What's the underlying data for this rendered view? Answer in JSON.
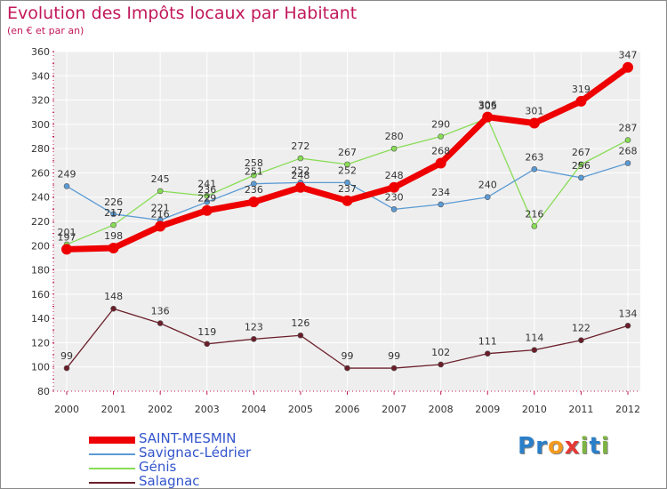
{
  "header": {
    "title": "Evolution des Impôts locaux par Habitant",
    "subtitle": "(en € et par an)"
  },
  "brand": {
    "text": "Proxiti",
    "letters": [
      {
        "ch": "P",
        "color": "#2a7fc9"
      },
      {
        "ch": "r",
        "color": "#2a7fc9"
      },
      {
        "ch": "o",
        "color": "#f39a1e"
      },
      {
        "ch": "x",
        "color": "#e53935"
      },
      {
        "ch": "i",
        "color": "#7cb342"
      },
      {
        "ch": "t",
        "color": "#2a7fc9"
      },
      {
        "ch": "i",
        "color": "#7cb342"
      }
    ]
  },
  "chart_data": {
    "type": "line",
    "title": "Evolution des Impôts locaux par Habitant",
    "subtitle": "(en € et par an)",
    "x": [
      "2000",
      "2001",
      "2002",
      "2003",
      "2004",
      "2005",
      "2006",
      "2007",
      "2008",
      "2009",
      "2010",
      "2011",
      "2012"
    ],
    "ylim": [
      80,
      360
    ],
    "yticks": [
      80,
      100,
      120,
      140,
      160,
      180,
      200,
      220,
      240,
      260,
      280,
      300,
      320,
      340,
      360
    ],
    "grid": true,
    "legend_position": "bottom-left",
    "series": [
      {
        "name": "SAINT-MESMIN",
        "color": "#ee0000",
        "values": [
          197,
          198,
          216,
          229,
          236,
          248,
          237,
          248,
          268,
          306,
          301,
          319,
          347
        ]
      },
      {
        "name": "Savignac-Lédrier",
        "color": "#5b9bd5",
        "values": [
          249,
          226,
          221,
          236,
          251,
          252,
          252,
          230,
          234,
          240,
          263,
          256,
          268
        ]
      },
      {
        "name": "Génis",
        "color": "#88dd55",
        "values": [
          201,
          217,
          245,
          241,
          258,
          272,
          267,
          280,
          290,
          305,
          216,
          267,
          287
        ]
      },
      {
        "name": "Salagnac",
        "color": "#6b1e2a",
        "values": [
          99,
          148,
          136,
          119,
          123,
          126,
          99,
          99,
          102,
          111,
          114,
          122,
          134
        ]
      }
    ]
  }
}
